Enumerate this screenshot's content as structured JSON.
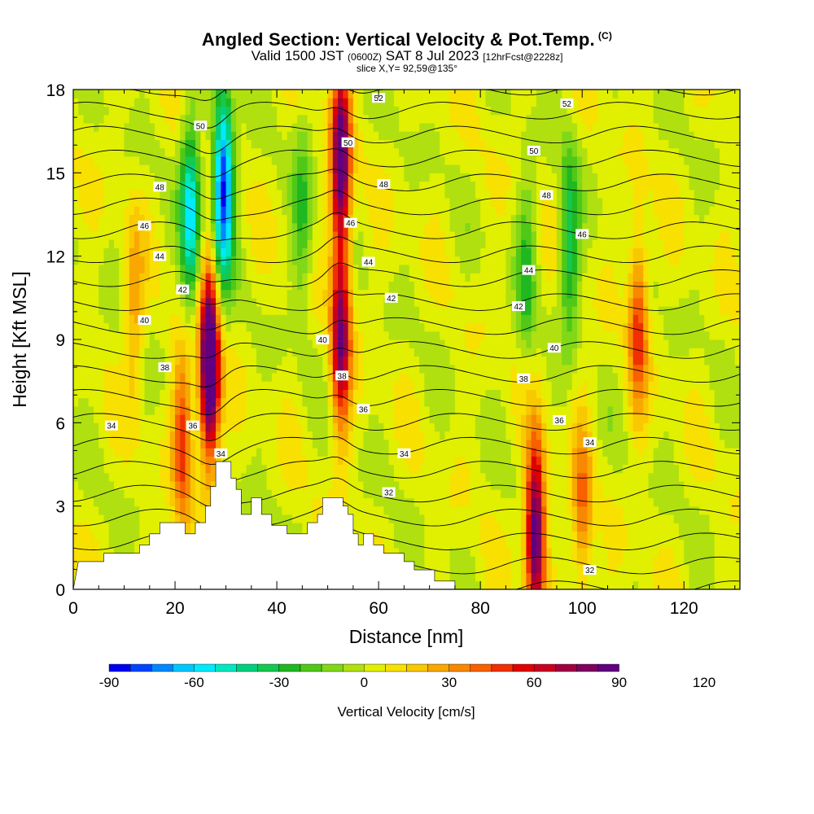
{
  "title": "Angled Section: Vertical Velocity & Pot.Temp.",
  "title_mark": "(C)",
  "subtitle": {
    "valid": "Valid 1500 JST",
    "utc": "(0600Z)",
    "date": "SAT 8 Jul 2023",
    "forecast": "[12hrFcst@2228z]"
  },
  "slice_info": "slice X,Y= 92,59@135°",
  "chart_data": {
    "type": "heatmap",
    "field": "vertical velocity",
    "contour_field": "potential temperature",
    "xlabel": "Distance [nm]",
    "ylabel": "Height [Kft MSL]",
    "xlim": [
      0,
      131
    ],
    "ylim": [
      0,
      18
    ],
    "x_ticks": [
      0,
      20,
      40,
      60,
      80,
      100,
      120
    ],
    "y_ticks": [
      0,
      3,
      6,
      9,
      12,
      15,
      18
    ],
    "colorbar": {
      "label": "Vertical Velocity [cm/s]",
      "min": -90,
      "max": 120,
      "step": 7.5,
      "tick_values": [
        -90,
        -60,
        -30,
        0,
        30,
        60,
        90,
        120
      ],
      "colors": [
        "#0000f0",
        "#0044ff",
        "#0088ff",
        "#00c8ff",
        "#00eaff",
        "#00e8c0",
        "#00d080",
        "#14c850",
        "#20b820",
        "#50c818",
        "#80d818",
        "#b0e010",
        "#e0f000",
        "#f8e000",
        "#f8c800",
        "#f8a800",
        "#f88800",
        "#f86000",
        "#f03000",
        "#e00000",
        "#c80020",
        "#a00040",
        "#800060",
        "#600080"
      ]
    },
    "updrafts": [
      {
        "x": 26.8,
        "z": 8.0,
        "w": 120
      },
      {
        "x": 52.6,
        "z": 15.5,
        "w": 90
      },
      {
        "x": 52.6,
        "z": 9.0,
        "w": 75
      },
      {
        "x": 90.8,
        "z": 2.2,
        "w": 90
      },
      {
        "x": 21.5,
        "z": 5.5,
        "w": 45
      },
      {
        "x": 111.0,
        "z": 9.7,
        "w": 45
      },
      {
        "x": 100.0,
        "z": 2.8,
        "w": 35
      },
      {
        "x": 12.0,
        "z": 10.0,
        "w": 25
      }
    ],
    "downdrafts": [
      {
        "x": 29.5,
        "z": 14.5,
        "w": -90
      },
      {
        "x": 23.0,
        "z": 13.5,
        "w": -60
      },
      {
        "x": 45.0,
        "z": 13.5,
        "w": -25
      },
      {
        "x": 89.0,
        "z": 11.5,
        "w": -25
      },
      {
        "x": 97.5,
        "z": 12.5,
        "w": -40
      }
    ],
    "terrain": [
      {
        "x": 0,
        "z": 0.0
      },
      {
        "x": 1,
        "z": 1.0
      },
      {
        "x": 6,
        "z": 1.0
      },
      {
        "x": 6,
        "z": 1.3
      },
      {
        "x": 13,
        "z": 1.3
      },
      {
        "x": 13,
        "z": 1.6
      },
      {
        "x": 15,
        "z": 1.6
      },
      {
        "x": 15,
        "z": 2.0
      },
      {
        "x": 17,
        "z": 2.0
      },
      {
        "x": 17,
        "z": 2.4
      },
      {
        "x": 22,
        "z": 2.4
      },
      {
        "x": 22,
        "z": 2.0
      },
      {
        "x": 24,
        "z": 2.0
      },
      {
        "x": 24,
        "z": 2.4
      },
      {
        "x": 26,
        "z": 2.4
      },
      {
        "x": 26,
        "z": 3.0
      },
      {
        "x": 27,
        "z": 3.0
      },
      {
        "x": 27,
        "z": 3.7
      },
      {
        "x": 28,
        "z": 3.7
      },
      {
        "x": 28,
        "z": 4.6
      },
      {
        "x": 31,
        "z": 4.6
      },
      {
        "x": 31,
        "z": 4.0
      },
      {
        "x": 32,
        "z": 4.0
      },
      {
        "x": 32,
        "z": 3.6
      },
      {
        "x": 33,
        "z": 3.6
      },
      {
        "x": 33,
        "z": 2.7
      },
      {
        "x": 35,
        "z": 2.7
      },
      {
        "x": 35,
        "z": 3.3
      },
      {
        "x": 37,
        "z": 3.3
      },
      {
        "x": 37,
        "z": 2.7
      },
      {
        "x": 39,
        "z": 2.7
      },
      {
        "x": 39,
        "z": 2.3
      },
      {
        "x": 42,
        "z": 2.3
      },
      {
        "x": 42,
        "z": 2.0
      },
      {
        "x": 46,
        "z": 2.0
      },
      {
        "x": 46,
        "z": 2.4
      },
      {
        "x": 48,
        "z": 2.4
      },
      {
        "x": 48,
        "z": 2.7
      },
      {
        "x": 49,
        "z": 2.7
      },
      {
        "x": 49,
        "z": 3.3
      },
      {
        "x": 53,
        "z": 3.3
      },
      {
        "x": 53,
        "z": 3.0
      },
      {
        "x": 54,
        "z": 3.0
      },
      {
        "x": 54,
        "z": 2.7
      },
      {
        "x": 55,
        "z": 2.7
      },
      {
        "x": 55,
        "z": 2.0
      },
      {
        "x": 56,
        "z": 2.0
      },
      {
        "x": 56,
        "z": 1.6
      },
      {
        "x": 57,
        "z": 1.6
      },
      {
        "x": 57,
        "z": 2.0
      },
      {
        "x": 59,
        "z": 2.0
      },
      {
        "x": 59,
        "z": 1.6
      },
      {
        "x": 61,
        "z": 1.6
      },
      {
        "x": 61,
        "z": 1.3
      },
      {
        "x": 65,
        "z": 1.3
      },
      {
        "x": 65,
        "z": 1.0
      },
      {
        "x": 67,
        "z": 1.0
      },
      {
        "x": 67,
        "z": 0.7
      },
      {
        "x": 71,
        "z": 0.7
      },
      {
        "x": 71,
        "z": 0.3
      },
      {
        "x": 75,
        "z": 0.3
      },
      {
        "x": 75,
        "z": 0.0
      }
    ],
    "theta_contour_levels": [
      31,
      32,
      33,
      34,
      35,
      36,
      37,
      38,
      39,
      40,
      41,
      42,
      43,
      44,
      45,
      46,
      47,
      48,
      49,
      50,
      51,
      52,
      53
    ],
    "contour_labels": [
      {
        "text": "50",
        "x": 25.0,
        "z": 16.7
      },
      {
        "text": "48",
        "x": 17.0,
        "z": 14.5
      },
      {
        "text": "46",
        "x": 14.0,
        "z": 13.1
      },
      {
        "text": "44",
        "x": 17.0,
        "z": 12.0
      },
      {
        "text": "42",
        "x": 21.5,
        "z": 10.8
      },
      {
        "text": "40",
        "x": 14.0,
        "z": 9.7
      },
      {
        "text": "38",
        "x": 18.0,
        "z": 8.0
      },
      {
        "text": "34",
        "x": 7.5,
        "z": 5.9
      },
      {
        "text": "36",
        "x": 23.5,
        "z": 5.9
      },
      {
        "text": "34",
        "x": 29.0,
        "z": 4.9
      },
      {
        "text": "52",
        "x": 60.0,
        "z": 17.7
      },
      {
        "text": "50",
        "x": 54.0,
        "z": 16.1
      },
      {
        "text": "48",
        "x": 61.0,
        "z": 14.6
      },
      {
        "text": "46",
        "x": 54.5,
        "z": 13.2
      },
      {
        "text": "44",
        "x": 58.0,
        "z": 11.8
      },
      {
        "text": "42",
        "x": 62.5,
        "z": 10.5
      },
      {
        "text": "40",
        "x": 49.0,
        "z": 9.0
      },
      {
        "text": "38",
        "x": 52.8,
        "z": 7.7
      },
      {
        "text": "36",
        "x": 57.0,
        "z": 6.5
      },
      {
        "text": "34",
        "x": 65.0,
        "z": 4.9
      },
      {
        "text": "32",
        "x": 62.0,
        "z": 3.5
      },
      {
        "text": "52",
        "x": 97.0,
        "z": 17.5
      },
      {
        "text": "50",
        "x": 90.5,
        "z": 15.8
      },
      {
        "text": "48",
        "x": 93.0,
        "z": 14.2
      },
      {
        "text": "46",
        "x": 100.0,
        "z": 12.8
      },
      {
        "text": "44",
        "x": 89.5,
        "z": 11.5
      },
      {
        "text": "42",
        "x": 87.5,
        "z": 10.2
      },
      {
        "text": "40",
        "x": 94.5,
        "z": 8.7
      },
      {
        "text": "38",
        "x": 88.5,
        "z": 7.6
      },
      {
        "text": "36",
        "x": 95.5,
        "z": 6.1
      },
      {
        "text": "34",
        "x": 101.5,
        "z": 5.3
      },
      {
        "text": "32",
        "x": 101.5,
        "z": 0.7
      }
    ]
  }
}
